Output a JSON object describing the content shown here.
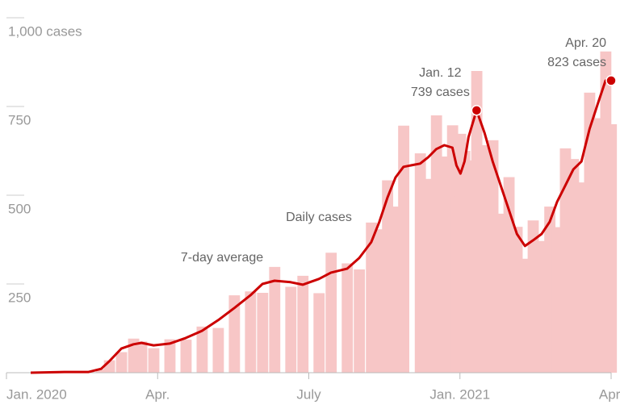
{
  "chart_data": {
    "type": "bar-line",
    "x": [
      0.48,
      1.15,
      1.63,
      1.88,
      2.04,
      2.28,
      2.52,
      2.68,
      2.92,
      3.24,
      3.56,
      3.88,
      4.2,
      4.52,
      4.84,
      5.08,
      5.32,
      5.64,
      5.88,
      6.2,
      6.44,
      6.76,
      7.0,
      7.24,
      7.4,
      7.56,
      7.72,
      7.88,
      8.21,
      8.37,
      8.53,
      8.69,
      8.85,
      8.93,
      9.01,
      9.09,
      9.17,
      9.33,
      9.49,
      9.65,
      9.81,
      9.97,
      10.13,
      10.29,
      10.45,
      10.62,
      10.78,
      10.93,
      11.09,
      11.25,
      11.41,
      11.57,
      11.73,
      11.89,
      12.0
    ],
    "series": [
      {
        "name": "Daily cases",
        "color": "#f7c6c6",
        "kind": "bar",
        "values": [
          0,
          2,
          2,
          10,
          35,
          58,
          96,
          88,
          69,
          94,
          93,
          130,
          126,
          218,
          229,
          225,
          298,
          242,
          273,
          224,
          338,
          308,
          291,
          423,
          404,
          542,
          468,
          696,
          618,
          546,
          725,
          609,
          697,
          496,
          673,
          625,
          598,
          850,
          641,
          655,
          448,
          551,
          411,
          321,
          429,
          371,
          468,
          410,
          632,
          602,
          536,
          789,
          717,
          905,
          700
        ]
      },
      {
        "name": "7-day average",
        "color": "#cc0000",
        "kind": "line",
        "values": [
          0,
          2,
          2,
          11,
          32,
          68,
          80,
          84,
          77,
          82,
          98,
          118,
          148,
          182,
          218,
          250,
          259,
          255,
          248,
          264,
          282,
          293,
          323,
          368,
          425,
          493,
          550,
          580,
          589,
          607,
          630,
          641,
          634,
          584,
          561,
          595,
          664,
          739,
          675,
          595,
          527,
          459,
          391,
          357,
          373,
          391,
          425,
          482,
          527,
          573,
          595,
          686,
          755,
          823,
          823
        ]
      }
    ],
    "xlim": [
      0,
      12
    ],
    "xticks": [
      {
        "value": 0,
        "label": "Jan. 2020"
      },
      {
        "value": 3,
        "label": "Apr."
      },
      {
        "value": 6,
        "label": "July"
      },
      {
        "value": 9,
        "label": "Jan. 2021"
      },
      {
        "value": 12,
        "label": "Apr."
      }
    ],
    "ylim": [
      0,
      1000
    ],
    "yticks": [
      {
        "value": 250,
        "label": "250"
      },
      {
        "value": 500,
        "label": "500"
      },
      {
        "value": 750,
        "label": "750"
      },
      {
        "value": 1000,
        "label": "1,000 cases"
      }
    ],
    "grid": true,
    "annotations": [
      {
        "point": 37,
        "date": "Jan. 12",
        "text": "739 cases"
      },
      {
        "point": 54,
        "date": "Apr. 20",
        "text": "823 cases"
      }
    ]
  }
}
